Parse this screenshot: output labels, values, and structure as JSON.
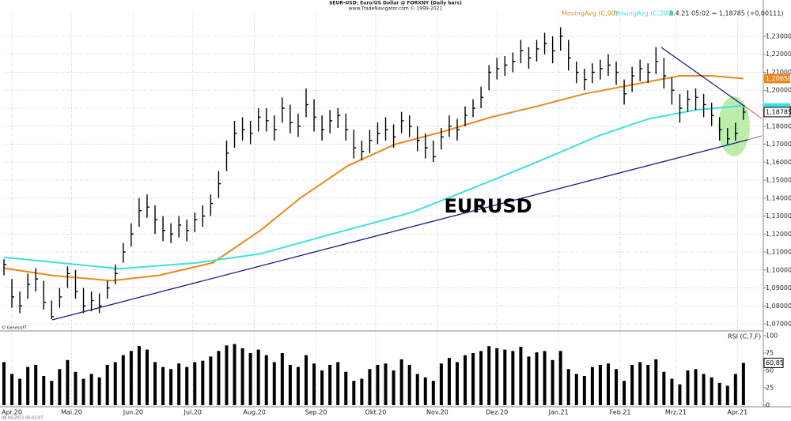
{
  "header": {
    "title": "$EUR-USD: Euro/US Dollar @ FORXNY  (Daily bars)",
    "subtitle": "www.TradeNavigator.com © 1999-2021",
    "source": "© GenesisFT",
    "timestamp": "08.04.2021 05:02:07"
  },
  "chart_data": [
    {
      "type": "ohlc",
      "annotation": "EURUSD",
      "quote": "8.4.21 05:02 = 1,18785 (+0,00111)",
      "color": "#000000",
      "xlim": [
        -4,
        378
      ],
      "ylim": [
        1.0665,
        1.2423
      ],
      "yticks": [
        {
          "value": 1.07,
          "label": "1,07000"
        },
        {
          "value": 1.08,
          "label": "1,08000"
        },
        {
          "value": 1.09,
          "label": "1,09000"
        },
        {
          "value": 1.1,
          "label": "1,10000"
        },
        {
          "value": 1.11,
          "label": "1,11000"
        },
        {
          "value": 1.12,
          "label": "1,12000"
        },
        {
          "value": 1.13,
          "label": "1,13000"
        },
        {
          "value": 1.14,
          "label": "1,14000"
        },
        {
          "value": 1.15,
          "label": "1,15000"
        },
        {
          "value": 1.16,
          "label": "1,16000"
        },
        {
          "value": 1.17,
          "label": "1,17000"
        },
        {
          "value": 1.18,
          "label": "1,18000"
        },
        {
          "value": 1.19,
          "label": "1,19000"
        },
        {
          "value": 1.2,
          "label": "1,20000"
        },
        {
          "value": 1.21,
          "label": "1,21000"
        },
        {
          "value": 1.22,
          "label": "1,22000"
        },
        {
          "value": 1.23,
          "label": "1,23000"
        }
      ],
      "grid": true,
      "x": [
        -4,
        0,
        4,
        8,
        12,
        16,
        20,
        24,
        28,
        32,
        36,
        40,
        44,
        48,
        52,
        56,
        60,
        64,
        68,
        72,
        76,
        80,
        84,
        88,
        92,
        96,
        100,
        104,
        108,
        112,
        116,
        120,
        124,
        128,
        132,
        136,
        140,
        144,
        148,
        152,
        156,
        160,
        164,
        168,
        172,
        176,
        180,
        184,
        188,
        192,
        196,
        200,
        204,
        208,
        212,
        216,
        220,
        224,
        228,
        232,
        236,
        240,
        244,
        248,
        252,
        256,
        260,
        264,
        268,
        272,
        276,
        280,
        284,
        288,
        292,
        296,
        300,
        304,
        308,
        312,
        316,
        320,
        324,
        328,
        332,
        336,
        340,
        344,
        348,
        352,
        356,
        360,
        364,
        368
      ],
      "high": [
        1.106,
        1.095,
        1.088,
        1.098,
        1.101,
        1.094,
        1.083,
        1.09,
        1.102,
        1.1,
        1.09,
        1.088,
        1.087,
        1.094,
        1.103,
        1.115,
        1.126,
        1.14,
        1.142,
        1.136,
        1.13,
        1.126,
        1.13,
        1.128,
        1.132,
        1.136,
        1.142,
        1.155,
        1.172,
        1.183,
        1.185,
        1.183,
        1.19,
        1.19,
        1.186,
        1.196,
        1.192,
        1.187,
        1.201,
        1.195,
        1.186,
        1.189,
        1.19,
        1.187,
        1.178,
        1.172,
        1.178,
        1.182,
        1.185,
        1.181,
        1.188,
        1.186,
        1.18,
        1.176,
        1.172,
        1.179,
        1.186,
        1.184,
        1.191,
        1.195,
        1.202,
        1.214,
        1.218,
        1.219,
        1.221,
        1.228,
        1.224,
        1.228,
        1.232,
        1.23,
        1.235,
        1.228,
        1.216,
        1.212,
        1.215,
        1.217,
        1.22,
        1.216,
        1.206,
        1.213,
        1.217,
        1.215,
        1.224,
        1.218,
        1.207,
        1.198,
        1.2,
        1.201,
        1.198,
        1.193,
        1.185,
        1.179,
        1.182,
        1.1905
      ],
      "low": [
        1.097,
        1.079,
        1.076,
        1.084,
        1.088,
        1.078,
        1.0727,
        1.079,
        1.09,
        1.084,
        1.076,
        1.077,
        1.076,
        1.084,
        1.092,
        1.104,
        1.113,
        1.124,
        1.129,
        1.12,
        1.116,
        1.115,
        1.118,
        1.116,
        1.121,
        1.124,
        1.13,
        1.14,
        1.155,
        1.168,
        1.172,
        1.17,
        1.177,
        1.177,
        1.172,
        1.182,
        1.176,
        1.174,
        1.185,
        1.177,
        1.172,
        1.176,
        1.179,
        1.172,
        1.162,
        1.161,
        1.165,
        1.17,
        1.172,
        1.168,
        1.176,
        1.174,
        1.166,
        1.162,
        1.16,
        1.167,
        1.174,
        1.172,
        1.18,
        1.185,
        1.19,
        1.2,
        1.206,
        1.208,
        1.21,
        1.215,
        1.212,
        1.216,
        1.22,
        1.215,
        1.222,
        1.211,
        1.204,
        1.2,
        1.204,
        1.206,
        1.208,
        1.203,
        1.192,
        1.199,
        1.205,
        1.204,
        1.209,
        1.201,
        1.192,
        1.182,
        1.188,
        1.189,
        1.185,
        1.18,
        1.172,
        1.17,
        1.172,
        1.1835
      ],
      "values": [
        1.103,
        1.085,
        1.08,
        1.092,
        1.095,
        1.082,
        1.074,
        1.085,
        1.098,
        1.088,
        1.08,
        1.083,
        1.08,
        1.09,
        1.098,
        1.11,
        1.12,
        1.133,
        1.135,
        1.128,
        1.122,
        1.12,
        1.125,
        1.122,
        1.128,
        1.13,
        1.137,
        1.148,
        1.165,
        1.176,
        1.178,
        1.176,
        1.185,
        1.183,
        1.178,
        1.19,
        1.182,
        1.18,
        1.192,
        1.185,
        1.178,
        1.183,
        1.186,
        1.178,
        1.168,
        1.166,
        1.172,
        1.176,
        1.178,
        1.174,
        1.183,
        1.18,
        1.172,
        1.168,
        1.163,
        1.174,
        1.18,
        1.178,
        1.186,
        1.19,
        1.196,
        1.21,
        1.212,
        1.214,
        1.216,
        1.222,
        1.218,
        1.223,
        1.226,
        1.222,
        1.23,
        1.218,
        1.21,
        1.206,
        1.21,
        1.212,
        1.214,
        1.21,
        1.198,
        1.208,
        1.212,
        1.21,
        1.216,
        1.208,
        1.2,
        1.19,
        1.195,
        1.196,
        1.192,
        1.186,
        1.178,
        1.173,
        1.176,
        1.18785
      ],
      "value_labels": [
        null,
        null,
        null,
        null,
        null,
        null,
        null,
        null,
        null,
        null,
        null,
        null,
        null,
        null,
        null,
        null,
        null,
        null,
        null,
        null,
        null,
        null,
        null,
        null,
        null,
        null,
        null,
        null,
        null,
        null,
        null,
        null,
        null,
        null,
        null,
        null,
        null,
        null,
        null,
        null,
        null,
        null,
        null,
        null,
        null,
        null,
        null,
        null,
        null,
        null,
        null,
        null,
        null,
        null,
        null,
        null,
        null,
        null,
        null,
        null,
        null,
        null,
        null,
        null,
        null,
        null,
        null,
        null,
        null,
        null,
        null,
        null,
        null,
        null,
        null,
        null,
        null,
        null,
        null,
        null,
        null,
        null,
        null,
        null,
        null,
        null,
        null,
        null,
        null,
        null,
        null,
        null,
        null,
        "1,18785"
      ],
      "lines": [
        {
          "name": "MovingAvg (C,90)",
          "color": "#e8891f",
          "x": [
            -4,
            20,
            50,
            74,
            101,
            125,
            145,
            169,
            193,
            217,
            241,
            264,
            288,
            312,
            336,
            352,
            368
          ],
          "values": [
            1.101,
            1.097,
            1.094,
            1.097,
            1.104,
            1.122,
            1.14,
            1.158,
            1.17,
            1.177,
            1.185,
            1.191,
            1.198,
            1.203,
            1.208,
            1.208,
            1.2065
          ],
          "value_labels": [
            null,
            null,
            null,
            null,
            null,
            null,
            null,
            null,
            null,
            null,
            null,
            null,
            null,
            null,
            null,
            null,
            "1,20650"
          ]
        },
        {
          "name": "MovingAvg (C,200)",
          "color": "#3ee0e0",
          "x": [
            -4,
            54,
            93,
            125,
            161,
            201,
            233,
            264,
            296,
            320,
            344,
            368
          ],
          "values": [
            1.107,
            1.1007,
            1.104,
            1.109,
            1.12,
            1.132,
            1.146,
            1.16,
            1.175,
            1.184,
            1.189,
            1.1915
          ]
        }
      ]
    },
    {
      "type": "bar",
      "title": "RSI (C,7,F)",
      "color": "#000000",
      "xlim": [
        -4,
        378
      ],
      "ylim": [
        0,
        100
      ],
      "yticks": [
        0,
        25,
        50,
        75,
        100
      ],
      "xticks": [
        {
          "value": 0,
          "label": "Apr.20"
        },
        {
          "value": 30,
          "label": "Mai.20"
        },
        {
          "value": 61,
          "label": "Jun.20"
        },
        {
          "value": 91,
          "label": "Jul.20"
        },
        {
          "value": 122,
          "label": "Aug.20"
        },
        {
          "value": 153,
          "label": "Sep.20"
        },
        {
          "value": 183,
          "label": "Okt.20"
        },
        {
          "value": 214,
          "label": "Nov.20"
        },
        {
          "value": 244,
          "label": "Dez.20"
        },
        {
          "value": 275,
          "label": "Jan.21"
        },
        {
          "value": 306,
          "label": "Feb.21"
        },
        {
          "value": 334,
          "label": "Mrz.21"
        },
        {
          "value": 365,
          "label": "Apr.21"
        }
      ],
      "x": [
        -4,
        0,
        4,
        8,
        12,
        16,
        20,
        24,
        28,
        32,
        36,
        40,
        44,
        48,
        52,
        56,
        60,
        64,
        68,
        72,
        76,
        80,
        84,
        88,
        92,
        96,
        100,
        104,
        108,
        112,
        116,
        120,
        124,
        128,
        132,
        136,
        140,
        144,
        148,
        152,
        156,
        160,
        164,
        168,
        172,
        176,
        180,
        184,
        188,
        192,
        196,
        200,
        204,
        208,
        212,
        216,
        220,
        224,
        228,
        232,
        236,
        240,
        244,
        248,
        252,
        256,
        260,
        264,
        268,
        272,
        276,
        280,
        284,
        288,
        292,
        296,
        300,
        304,
        308,
        312,
        316,
        320,
        324,
        328,
        332,
        336,
        340,
        344,
        348,
        352,
        356,
        360,
        364,
        368
      ],
      "values": [
        62,
        45,
        38,
        55,
        58,
        42,
        35,
        52,
        65,
        48,
        38,
        45,
        40,
        58,
        62,
        72,
        78,
        85,
        80,
        62,
        55,
        52,
        60,
        55,
        62,
        64,
        70,
        78,
        86,
        88,
        82,
        75,
        80,
        72,
        62,
        75,
        58,
        55,
        72,
        60,
        50,
        58,
        62,
        48,
        35,
        38,
        52,
        58,
        60,
        50,
        66,
        58,
        45,
        40,
        35,
        60,
        68,
        62,
        72,
        75,
        78,
        85,
        82,
        80,
        78,
        84,
        70,
        76,
        78,
        65,
        78,
        52,
        45,
        42,
        55,
        58,
        60,
        52,
        35,
        58,
        62,
        58,
        66,
        48,
        38,
        30,
        50,
        52,
        45,
        40,
        32,
        28,
        45,
        60.85
      ],
      "value_labels": [
        null,
        null,
        null,
        null,
        null,
        null,
        null,
        null,
        null,
        null,
        null,
        null,
        null,
        null,
        null,
        null,
        null,
        null,
        null,
        null,
        null,
        null,
        null,
        null,
        null,
        null,
        null,
        null,
        null,
        null,
        null,
        null,
        null,
        null,
        null,
        null,
        null,
        null,
        null,
        null,
        null,
        null,
        null,
        null,
        null,
        null,
        null,
        null,
        null,
        null,
        null,
        null,
        null,
        null,
        null,
        null,
        null,
        null,
        null,
        null,
        null,
        null,
        null,
        null,
        null,
        null,
        null,
        null,
        null,
        null,
        null,
        null,
        null,
        null,
        null,
        null,
        null,
        null,
        null,
        null,
        null,
        null,
        null,
        null,
        null,
        null,
        null,
        null,
        null,
        null,
        null,
        null,
        null,
        "60,85"
      ]
    }
  ]
}
